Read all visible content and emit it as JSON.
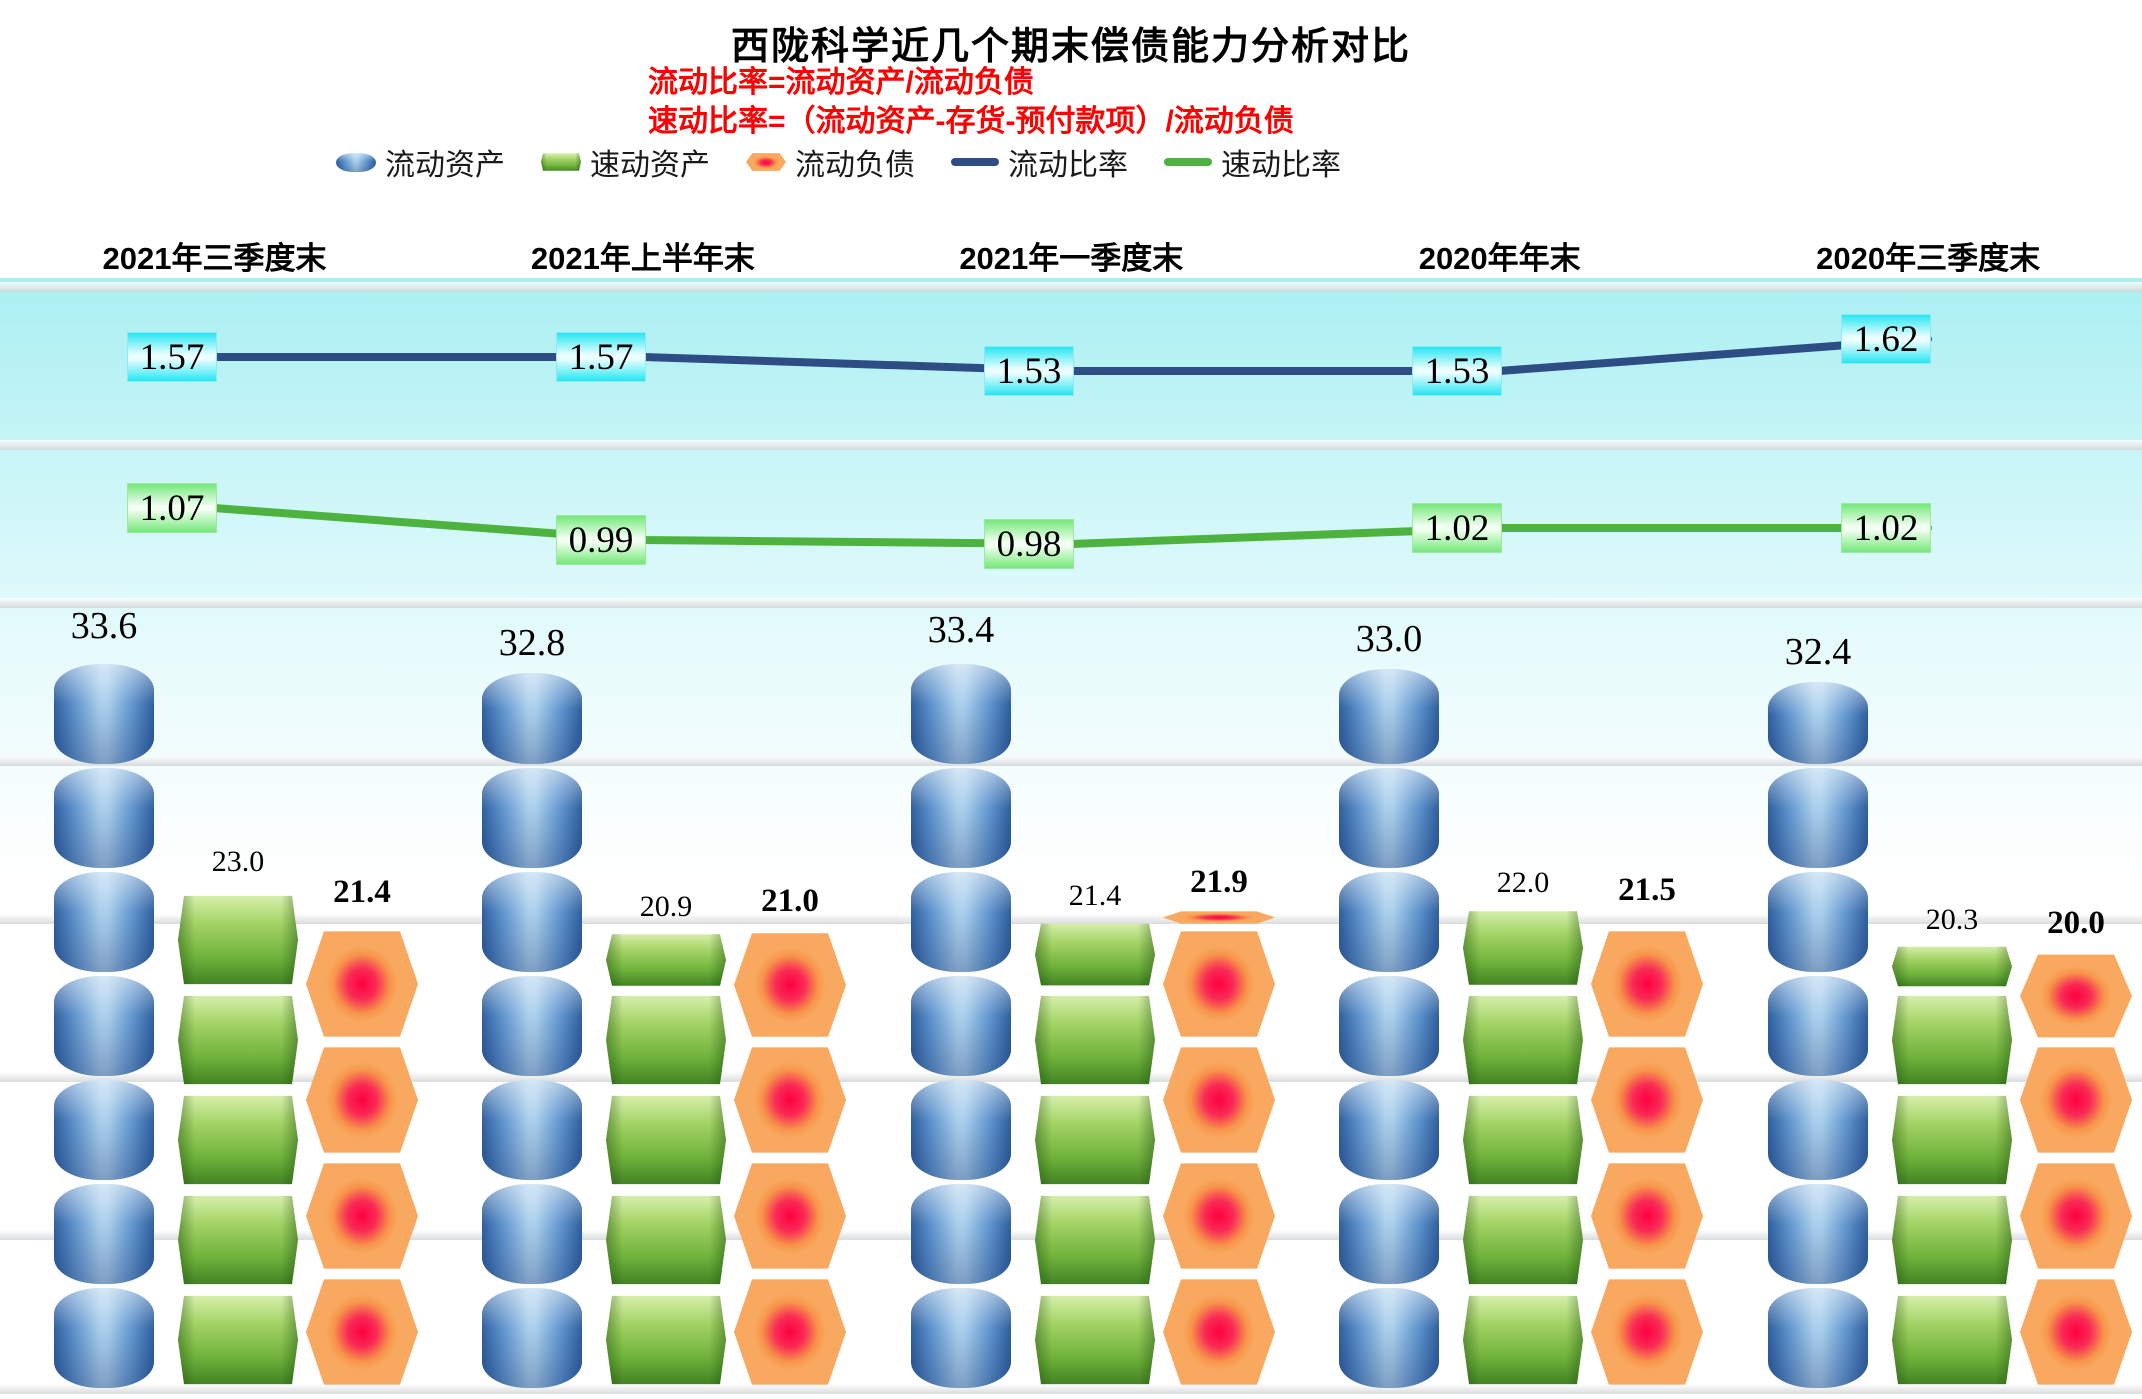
{
  "title": "西陇科学近几个期末偿债能力分析对比",
  "formulas": [
    "流动比率=流动资产/流动负债",
    "速动比率=（流动资产-存货-预付款项）/流动负债"
  ],
  "legend": [
    {
      "label": "流动资产",
      "marker": "bar-blue",
      "color": "#5b8fc9"
    },
    {
      "label": "速动资产",
      "marker": "bar-green",
      "color": "#6fae46"
    },
    {
      "label": "流动负债",
      "marker": "bar-orange",
      "color": "#f7944a"
    },
    {
      "label": "流动比率",
      "marker": "line",
      "color": "#2e4d85"
    },
    {
      "label": "速动比率",
      "marker": "line",
      "color": "#4db23e"
    }
  ],
  "chart_data": {
    "type": "combo bar+line (pictorial stacked-segment bars with two ratio lines)",
    "title": "西陇科学近几个期末偿债能力分析对比",
    "categories": [
      "2021年三季度末",
      "2021年上半年末",
      "2021年一季度末",
      "2020年年末",
      "2020年三季度末"
    ],
    "series": [
      {
        "name": "流动资产",
        "kind": "bar",
        "color": "#5b8fc9",
        "values": [
          33.6,
          32.8,
          33.4,
          33.0,
          32.4
        ]
      },
      {
        "name": "速动资产",
        "kind": "bar",
        "color": "#6fae46",
        "values": [
          23.0,
          20.9,
          21.4,
          22.0,
          20.3
        ]
      },
      {
        "name": "流动负债",
        "kind": "bar",
        "color": "#f7944a",
        "values": [
          21.4,
          21.0,
          21.9,
          21.5,
          20.0
        ]
      },
      {
        "name": "流动比率",
        "kind": "line",
        "color": "#2e4d85",
        "values": [
          1.57,
          1.57,
          1.53,
          1.53,
          1.62
        ]
      },
      {
        "name": "速动比率",
        "kind": "line",
        "color": "#4db23e",
        "values": [
          1.07,
          0.99,
          0.98,
          1.02,
          1.02
        ]
      }
    ],
    "xlabel": "",
    "ylabel": "",
    "legend_position": "top",
    "grid": "horizontal stripes",
    "value_labels": "every point labeled; bar values 1 decimal, line values 2 decimals"
  }
}
